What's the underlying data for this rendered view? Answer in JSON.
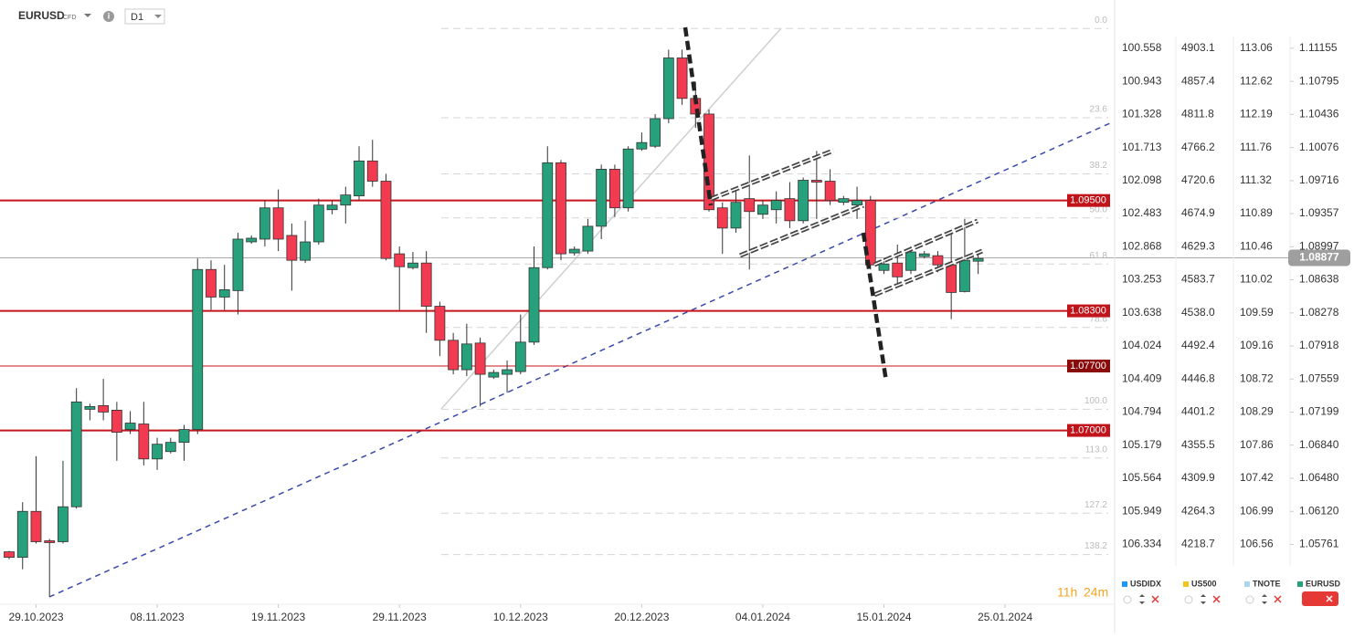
{
  "chart_data": {
    "type": "candlestick",
    "symbol": "EURUSD",
    "instrument_type": "CFD",
    "timeframe": "D1",
    "timer": {
      "hours": "11h",
      "minutes": "24m"
    },
    "up_color": "#26a17b",
    "down_color": "#f23a50",
    "x": [
      0,
      1,
      2,
      3,
      4,
      5,
      6,
      7,
      8,
      9,
      10,
      11,
      12,
      13,
      14,
      15,
      16,
      17,
      18,
      19,
      20,
      21,
      22,
      23,
      24,
      25,
      26,
      27,
      28,
      29,
      30,
      31,
      32,
      33,
      34,
      35,
      36,
      37,
      38,
      39,
      40,
      41,
      42,
      43,
      44,
      45,
      46,
      47,
      48,
      49,
      50,
      51,
      52,
      53,
      54,
      55,
      56,
      57,
      58,
      59,
      60,
      61,
      62,
      63,
      64,
      65,
      66,
      67,
      68,
      69,
      70,
      71,
      72
    ],
    "open": [
      1.0568,
      1.0562,
      1.0612,
      1.058,
      1.0579,
      1.0617,
      1.0723,
      1.0727,
      1.0722,
      1.0701,
      1.0707,
      1.0669,
      1.0677,
      1.0687,
      1.0701,
      1.0875,
      1.0845,
      1.0852,
      1.0905,
      1.0908,
      1.0942,
      1.0912,
      1.0885,
      1.0905,
      1.094,
      1.0945,
      1.0955,
      1.0993,
      1.0971,
      1.0892,
      1.0877,
      1.0882,
      1.0835,
      1.0798,
      1.0766,
      1.0795,
      1.0758,
      1.0761,
      1.0764,
      1.0796,
      1.0877,
      1.0991,
      1.0893,
      1.0895,
      1.0922,
      1.0984,
      1.0942,
      1.1006,
      1.1009,
      1.1039,
      1.1105,
      1.1061,
      1.1044,
      1.0942,
      1.092,
      1.0952,
      1.0935,
      1.094,
      1.0952,
      1.0928,
      1.0972,
      1.0971,
      1.0948,
      1.0945,
      1.095,
      1.0874,
      1.0882,
      1.0874,
      1.0889,
      1.089,
      1.088,
      1.0851,
      1.0884
    ],
    "high": [
      1.0569,
      1.0622,
      1.0672,
      1.0582,
      1.0667,
      1.0746,
      1.0729,
      1.0756,
      1.0731,
      1.0721,
      1.0731,
      1.0692,
      1.0692,
      1.0706,
      1.0887,
      1.0885,
      1.088,
      1.0915,
      1.0912,
      1.095,
      1.0962,
      1.0925,
      1.0928,
      1.0952,
      1.095,
      1.0965,
      1.1009,
      1.1016,
      1.0979,
      1.09,
      1.0894,
      1.0895,
      1.084,
      1.0806,
      1.0816,
      1.0801,
      1.0766,
      1.0776,
      1.0826,
      1.09,
      1.1009,
      1.0994,
      1.09,
      1.093,
      1.0989,
      1.0989,
      1.1009,
      1.1024,
      1.1044,
      1.1114,
      1.1114,
      1.1079,
      1.1049,
      1.0948,
      1.096,
      1.0999,
      1.095,
      1.096,
      1.097,
      1.0975,
      1.1004,
      1.0984,
      1.0955,
      1.0965,
      1.0955,
      1.0887,
      1.0902,
      1.09,
      1.0895,
      1.0895,
      1.0915,
      1.093,
      1.0895
    ],
    "low": [
      1.056,
      1.0549,
      1.0577,
      1.0519,
      1.0577,
      1.0615,
      1.0711,
      1.0711,
      1.0667,
      1.0696,
      1.0662,
      1.0657,
      1.0675,
      1.0667,
      1.0696,
      1.0831,
      1.0831,
      1.0826,
      1.0903,
      1.09,
      1.0895,
      1.0852,
      1.0882,
      1.0902,
      1.0935,
      1.0925,
      1.095,
      1.0965,
      1.0885,
      1.0831,
      1.0875,
      1.0806,
      1.0781,
      1.0761,
      1.0759,
      1.0726,
      1.0756,
      1.0741,
      1.0761,
      1.0793,
      1.0875,
      1.0885,
      1.089,
      1.0892,
      1.0908,
      1.0932,
      1.0938,
      1.1004,
      1.1007,
      1.1034,
      1.1054,
      1.1029,
      1.0938,
      1.0892,
      1.0915,
      1.0875,
      1.093,
      1.0925,
      1.092,
      1.0925,
      1.093,
      1.0945,
      1.0945,
      1.093,
      1.0875,
      1.087,
      1.086,
      1.087,
      1.0887,
      1.0872,
      1.0821,
      1.085,
      1.087
    ],
    "close": [
      1.0562,
      1.0612,
      1.0579,
      1.0578,
      1.0617,
      1.0731,
      1.0726,
      1.072,
      1.0698,
      1.0708,
      1.0669,
      1.0685,
      1.0687,
      1.0701,
      1.0875,
      1.0845,
      1.0853,
      1.0908,
      1.0909,
      1.0942,
      1.0908,
      1.0885,
      1.0905,
      1.0945,
      1.0945,
      1.0956,
      1.0993,
      1.0971,
      1.0887,
      1.0878,
      1.0882,
      1.0835,
      1.0798,
      1.0766,
      1.0794,
      1.0761,
      1.0763,
      1.0766,
      1.0796,
      1.0877,
      1.0991,
      1.0892,
      1.0897,
      1.0922,
      1.0984,
      1.0942,
      1.1006,
      1.1013,
      1.1039,
      1.1105,
      1.1061,
      1.1044,
      1.094,
      1.092,
      1.0948,
      1.0938,
      1.0945,
      1.095,
      1.0928,
      1.0972,
      1.097,
      1.095,
      1.0952,
      1.095,
      1.088,
      1.0881,
      1.0867,
      1.0894,
      1.0892,
      1.088,
      1.085,
      1.0885,
      1.0887
    ],
    "xlim": [
      -0.68,
      81.8
    ],
    "xticks": [
      {
        "value": 2,
        "label": "29.10.2023"
      },
      {
        "value": 11,
        "label": "08.11.2023"
      },
      {
        "value": 20,
        "label": "19.11.2023"
      },
      {
        "value": 29,
        "label": "29.11.2023"
      },
      {
        "value": 38,
        "label": "10.12.2023"
      },
      {
        "value": 47,
        "label": "20.12.2023"
      },
      {
        "value": 56,
        "label": "04.01.2024"
      },
      {
        "value": 65,
        "label": "15.01.2024"
      },
      {
        "value": 74,
        "label": "25.01.2024"
      }
    ],
    "ylim": [
      1.0513,
      1.1168
    ],
    "yticks": [
      1.11155,
      1.10795,
      1.10436,
      1.10076,
      1.09716,
      1.09357,
      1.08997,
      1.08638,
      1.08278,
      1.07918,
      1.07559,
      1.07199,
      {
        "value": 1.0684,
        "label": "1.06840"
      },
      {
        "value": 1.0648,
        "label": "1.06480"
      },
      {
        "value": 1.0612,
        "label": "1.06120"
      },
      1.05761
    ],
    "last_price": 1.08877,
    "levels": [
      {
        "value": 1.095,
        "label": "1.09500"
      },
      {
        "value": 1.083,
        "label": "1.08300"
      },
      {
        "value": 1.077,
        "label": "1.07700"
      },
      {
        "value": 1.07,
        "label": "1.07000"
      }
    ],
    "fibonacci": [
      {
        "label": "0.0",
        "price": 1.1137
      },
      {
        "label": "23.6",
        "price": 1.104
      },
      {
        "label": "38.2",
        "price": 1.0979
      },
      {
        "label": "50.0",
        "price": 1.0931
      },
      {
        "label": "61.8",
        "price": 1.0881
      },
      {
        "label": "78.6",
        "price": 1.0812
      },
      {
        "label": "100.0",
        "price": 1.0723
      },
      {
        "label": "113.0",
        "price": 1.067
      },
      {
        "label": "127.2",
        "price": 1.061
      },
      {
        "label": "138.2",
        "price": 1.0565
      }
    ],
    "overlay_axes": [
      {
        "name": "USDIDX",
        "color": "#2196f3",
        "labels": [
          "100.558",
          "100.943",
          "101.328",
          "101.713",
          "102.098",
          "102.483",
          "102.868",
          "103.253",
          "103.638",
          "104.024",
          "104.409",
          "104.794",
          "105.179",
          "105.564",
          "105.949",
          "106.334"
        ]
      },
      {
        "name": "US500",
        "color": "#f5c518",
        "labels": [
          "4903.1",
          "4857.4",
          "4811.8",
          "4766.2",
          "4720.6",
          "4674.9",
          "4629.3",
          "4583.7",
          "4538.0",
          "4492.4",
          "4446.8",
          "4401.2",
          "4355.5",
          "4309.9",
          "4264.3",
          "4218.7"
        ]
      },
      {
        "name": "TNOTE",
        "color": "#a8d8ea",
        "labels": [
          "113.06",
          "112.62",
          "112.19",
          "111.76",
          "111.32",
          "110.89",
          "110.46",
          "110.02",
          "109.59",
          "109.16",
          "108.72",
          "108.29",
          "107.86",
          "107.42",
          "106.99",
          "106.56"
        ]
      }
    ],
    "main_color": "#26a17b"
  }
}
